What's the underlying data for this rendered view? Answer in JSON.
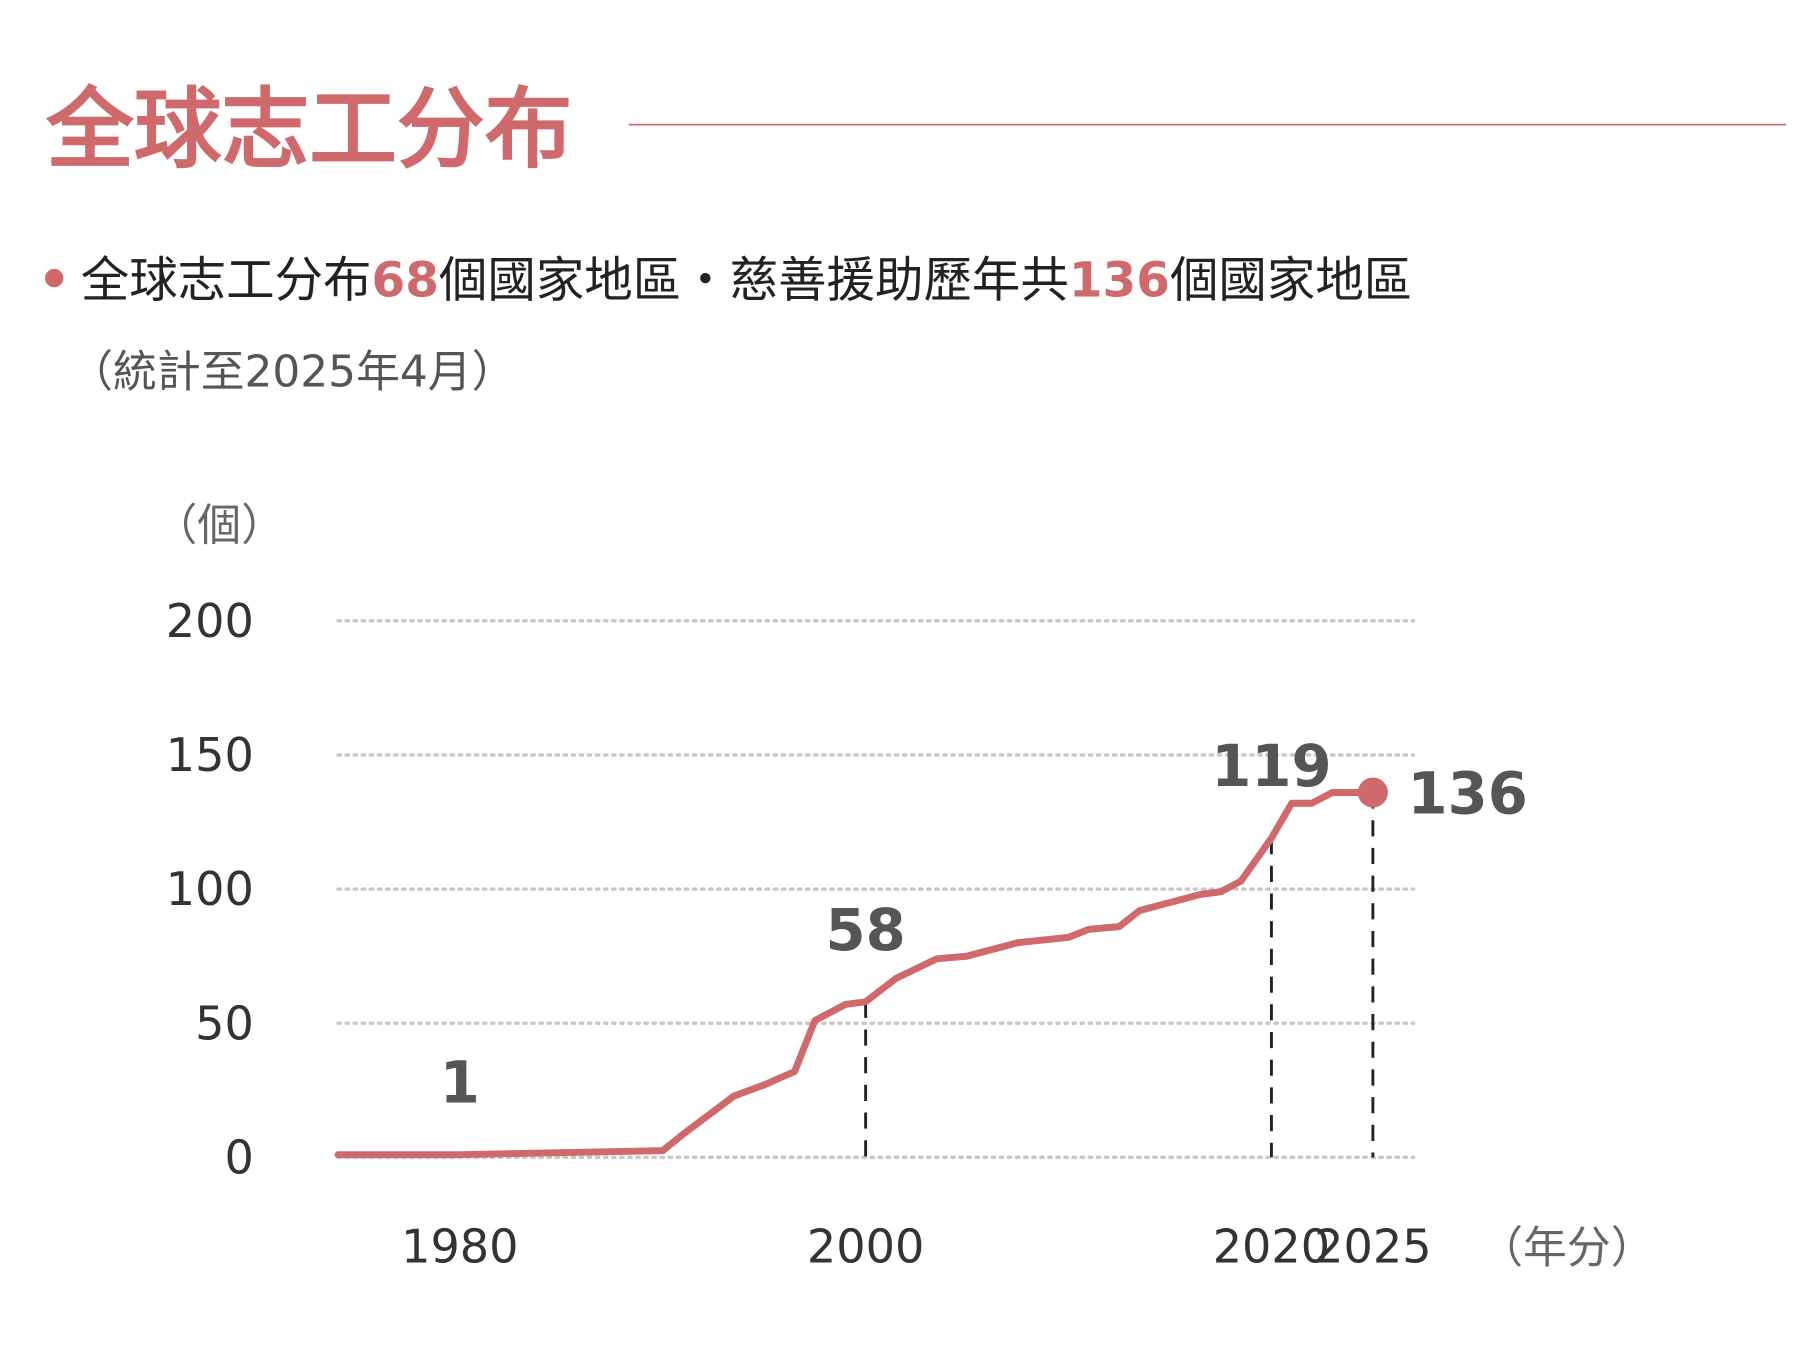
{
  "header": {
    "title": "全球志工分布",
    "summary": [
      "全球志工分布",
      "68",
      "個國家地區・慈善援助歷年共",
      "136",
      "個國家地區"
    ],
    "note": "（統計至2025年4月）"
  },
  "chart_data": {
    "type": "line",
    "y_unit": "（個）",
    "x_unit": "（年分）",
    "x": [
      1974,
      1980,
      1990,
      1991,
      1993.5,
      1995,
      1996.5,
      1997.5,
      1999,
      2000,
      2001.5,
      2003.5,
      2005,
      2006,
      2007.5,
      2010,
      2011,
      2012.5,
      2013.5,
      2014.5,
      2016.5,
      2017.5,
      2018.5,
      2020,
      2021,
      2022,
      2023,
      2025
    ],
    "series": [
      {
        "color": "#d0696b",
        "values": [
          1,
          1,
          2.5,
          8.6,
          22.8,
          27,
          32,
          51,
          57,
          58,
          66.7,
          74,
          75,
          77,
          80,
          82,
          85,
          86,
          92,
          94,
          98,
          99,
          103,
          119,
          132,
          132,
          136,
          136
        ]
      }
    ],
    "annotations": [
      {
        "x": 1980,
        "value": 1,
        "drop_line": false,
        "marker": false
      },
      {
        "x": 2000,
        "value": 58,
        "drop_line": true,
        "marker": false
      },
      {
        "x": 2020,
        "value": 119,
        "drop_line": true,
        "marker": false
      },
      {
        "x": 2025,
        "value": 136,
        "drop_line": true,
        "marker": true
      }
    ],
    "xlim": [
      1974,
      2027
    ],
    "xticks": [
      1980,
      2000,
      2020,
      2025
    ],
    "ylim": [
      0,
      200
    ],
    "yticks": [
      0,
      50,
      100,
      150,
      200
    ],
    "grid": true
  }
}
